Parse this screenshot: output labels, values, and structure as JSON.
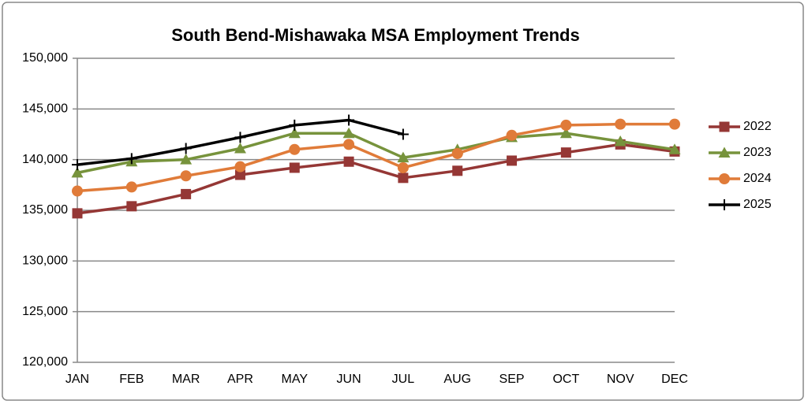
{
  "chart_data": {
    "type": "line",
    "title": "South Bend-Mishawaka MSA Employment Trends",
    "categories": [
      "JAN",
      "FEB",
      "MAR",
      "APR",
      "MAY",
      "JUN",
      "JUL",
      "AUG",
      "SEP",
      "OCT",
      "NOV",
      "DEC"
    ],
    "series": [
      {
        "name": "2022",
        "color": "#953735",
        "marker": "square",
        "values": [
          134700,
          135400,
          136600,
          138500,
          139200,
          139800,
          138200,
          138900,
          139900,
          140700,
          141500,
          140800
        ]
      },
      {
        "name": "2023",
        "color": "#77933c",
        "marker": "triangle",
        "values": [
          138700,
          139800,
          140000,
          141100,
          142600,
          142600,
          140200,
          141000,
          142200,
          142600,
          141800,
          141000
        ]
      },
      {
        "name": "2024",
        "color": "#e07b39",
        "marker": "circle",
        "values": [
          136900,
          137300,
          138400,
          139300,
          141000,
          141500,
          139200,
          140600,
          142400,
          143400,
          143500,
          143500
        ]
      },
      {
        "name": "2025",
        "color": "#000000",
        "marker": "plus",
        "values": [
          139500,
          140100,
          141100,
          142200,
          143400,
          143900,
          142500,
          null,
          null,
          null,
          null,
          null
        ]
      }
    ],
    "ylim": [
      120000,
      150000
    ],
    "yticks": [
      {
        "value": 120000,
        "label": "120,000"
      },
      {
        "value": 125000,
        "label": "125,000"
      },
      {
        "value": 130000,
        "label": "130,000"
      },
      {
        "value": 135000,
        "label": "135,000"
      },
      {
        "value": 140000,
        "label": "140,000"
      },
      {
        "value": 145000,
        "label": "145,000"
      },
      {
        "value": 150000,
        "label": "150,000"
      }
    ],
    "grid": true,
    "legend": "right"
  }
}
